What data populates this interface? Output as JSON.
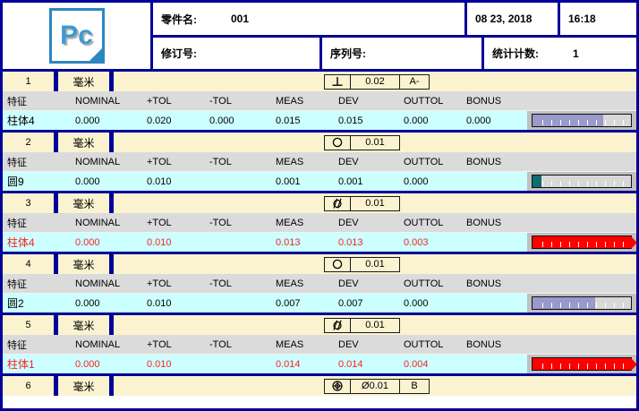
{
  "header": {
    "logo": "Pc",
    "part_name_label": "零件名:",
    "part_name": "001",
    "date": "08 23, 2018",
    "time": "16:18",
    "revision_label": "修订号:",
    "serial_label": "序列号:",
    "stat_count_label": "统计计数:",
    "stat_count": "1"
  },
  "table": {
    "columns": [
      "特征",
      "NOMINAL",
      "+TOL",
      "-TOL",
      "MEAS",
      "DEV",
      "OUTTOL",
      "BONUS"
    ]
  },
  "colors": {
    "frame_navy": "#000099",
    "band_yellow": "#FBF3D0",
    "header_gray": "#DBDBDB",
    "data_cyan": "#CCFFFF",
    "out_of_tol_red": "#FF0000",
    "bar_in_tol": "#9999CC",
    "bar_small_dev": "#0E6E6E"
  },
  "features": [
    {
      "no": "1",
      "unit": "毫米",
      "gdt": {
        "symbol": "perpendicularity",
        "tolerance": "0.02",
        "datum": "A-"
      },
      "name": "柱体4",
      "nominal": "0.000",
      "ptol": "0.020",
      "mtol": "0.000",
      "meas": "0.015",
      "dev": "0.015",
      "outtol": "0.000",
      "bonus": "0.000",
      "out_of_tol": false,
      "bar": {
        "fill_pct": 72,
        "color": "#9999CC",
        "arrow": false
      }
    },
    {
      "no": "2",
      "unit": "毫米",
      "gdt": {
        "symbol": "circularity",
        "tolerance": "0.01",
        "datum": ""
      },
      "name": "圆9",
      "nominal": "0.000",
      "ptol": "0.010",
      "mtol": "",
      "meas": "0.001",
      "dev": "0.001",
      "outtol": "0.000",
      "bonus": "",
      "out_of_tol": false,
      "bar": {
        "fill_pct": 9,
        "color": "#0E6E6E",
        "arrow": false
      }
    },
    {
      "no": "3",
      "unit": "毫米",
      "gdt": {
        "symbol": "cylindricity",
        "tolerance": "0.01",
        "datum": ""
      },
      "name": "柱体4",
      "nominal": "0.000",
      "ptol": "0.010",
      "mtol": "",
      "meas": "0.013",
      "dev": "0.013",
      "outtol": "0.003",
      "bonus": "",
      "out_of_tol": true,
      "bar": {
        "fill_pct": 100,
        "color": "#FF0000",
        "arrow": true
      }
    },
    {
      "no": "4",
      "unit": "毫米",
      "gdt": {
        "symbol": "circularity",
        "tolerance": "0.01",
        "datum": ""
      },
      "name": "圆2",
      "nominal": "0.000",
      "ptol": "0.010",
      "mtol": "",
      "meas": "0.007",
      "dev": "0.007",
      "outtol": "0.000",
      "bonus": "",
      "out_of_tol": false,
      "bar": {
        "fill_pct": 64,
        "color": "#9999CC",
        "arrow": false
      }
    },
    {
      "no": "5",
      "unit": "毫米",
      "gdt": {
        "symbol": "cylindricity",
        "tolerance": "0.01",
        "datum": ""
      },
      "name": "柱体1",
      "nominal": "0.000",
      "ptol": "0.010",
      "mtol": "",
      "meas": "0.014",
      "dev": "0.014",
      "outtol": "0.004",
      "bonus": "",
      "out_of_tol": true,
      "bar": {
        "fill_pct": 100,
        "color": "#FF0000",
        "arrow": true
      }
    },
    {
      "no": "6",
      "unit": "毫米",
      "gdt": {
        "symbol": "position",
        "tolerance": "Ø0.01",
        "datum": "B"
      }
    }
  ]
}
